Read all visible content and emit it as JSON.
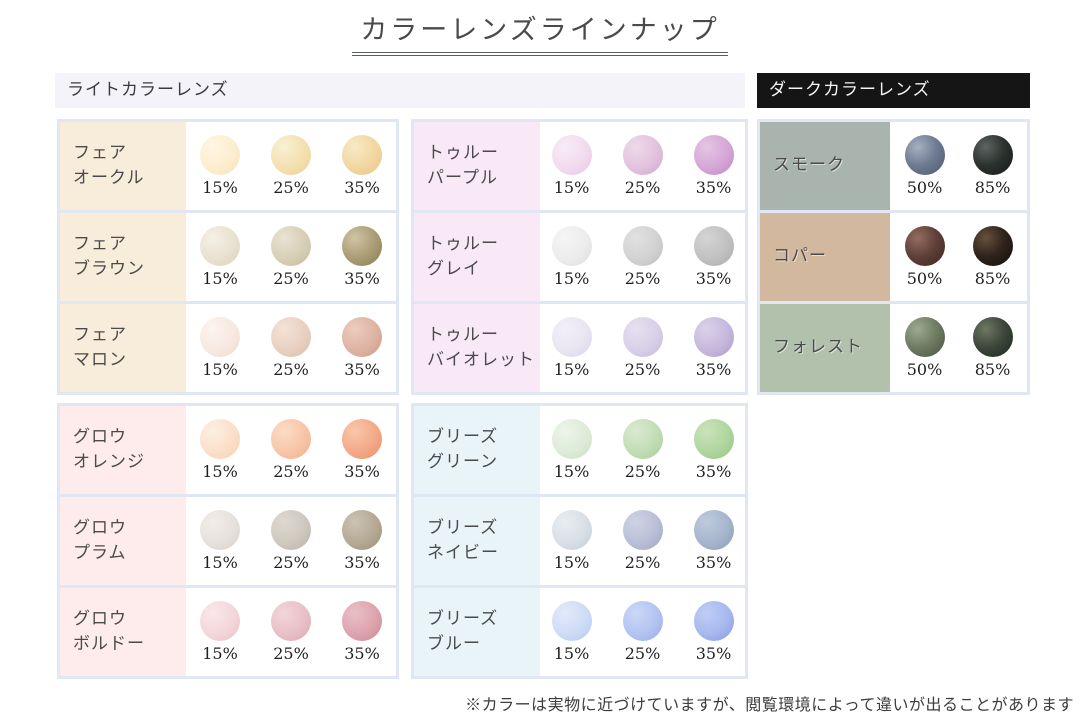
{
  "title": "カラーレンズラインナップ",
  "headers": {
    "light": "ライトカラーレンズ",
    "dark": "ダークカラーレンズ"
  },
  "footer_note": "※カラーは実物に近づけていますが、閲覧環境によって違いが出ることがあります",
  "accent_colors": {
    "box_border": "#e0e7f2",
    "light_header_bg": "#f5f3fa",
    "dark_header_bg": "#151515"
  },
  "columns": [
    {
      "section": "light",
      "groups": [
        {
          "rows": [
            {
              "label_lines": [
                "フェア",
                "オークル"
              ],
              "label_bg": "#f8ecda",
              "swatches": [
                {
                  "pct": "15%",
                  "hi": "#fff6e2",
                  "base": "#fcedcf",
                  "edge": "#f7e3ba"
                },
                {
                  "pct": "25%",
                  "hi": "#faf0d4",
                  "base": "#f4dfae",
                  "edge": "#edd094"
                },
                {
                  "pct": "35%",
                  "hi": "#f8eac6",
                  "base": "#f1d6a0",
                  "edge": "#e9c686"
                }
              ]
            },
            {
              "label_lines": [
                "フェア",
                "ブラウン"
              ],
              "label_bg": "#f8ecda",
              "swatches": [
                {
                  "pct": "15%",
                  "hi": "#f5f0e6",
                  "base": "#e9e1d0",
                  "edge": "#dcd1ba"
                },
                {
                  "pct": "25%",
                  "hi": "#e9e3d3",
                  "base": "#d7ceb5",
                  "edge": "#c6ba9b"
                },
                {
                  "pct": "35%",
                  "hi": "#cfc4a5",
                  "base": "#a89a72",
                  "edge": "#8a7b52"
                }
              ]
            },
            {
              "label_lines": [
                "フェア",
                "マロン"
              ],
              "label_bg": "#f8ecda",
              "swatches": [
                {
                  "pct": "15%",
                  "hi": "#fcf4ee",
                  "base": "#f7e8e0",
                  "edge": "#efd9cd"
                },
                {
                  "pct": "25%",
                  "hi": "#f3e3d7",
                  "base": "#e8d0c0",
                  "edge": "#dbbda8"
                },
                {
                  "pct": "35%",
                  "hi": "#ecccbd",
                  "base": "#ddb3a2",
                  "edge": "#cd9c86"
                }
              ]
            }
          ]
        },
        {
          "rows": [
            {
              "label_lines": [
                "グロウ",
                "オレンジ"
              ],
              "label_bg": "#fdeceb",
              "swatches": [
                {
                  "pct": "15%",
                  "hi": "#fdefe2",
                  "base": "#fbdfc9",
                  "edge": "#f7ceae"
                },
                {
                  "pct": "25%",
                  "hi": "#fbdcc6",
                  "base": "#f7c5a7",
                  "edge": "#f0af88"
                },
                {
                  "pct": "35%",
                  "hi": "#f9c7aa",
                  "base": "#f3a987",
                  "edge": "#ea8f63"
                }
              ]
            },
            {
              "label_lines": [
                "グロウ",
                "プラム"
              ],
              "label_bg": "#fdeceb",
              "swatches": [
                {
                  "pct": "15%",
                  "hi": "#f1ede9",
                  "base": "#e6e1dc",
                  "edge": "#d7d0c8"
                },
                {
                  "pct": "25%",
                  "hi": "#ded8d0",
                  "base": "#cfc8bf",
                  "edge": "#bbb1a3"
                },
                {
                  "pct": "35%",
                  "hi": "#cdc3b3",
                  "base": "#b5a995",
                  "edge": "#9c8d73"
                }
              ]
            },
            {
              "label_lines": [
                "グロウ",
                "ボルドー"
              ],
              "label_bg": "#fdeceb",
              "swatches": [
                {
                  "pct": "15%",
                  "hi": "#f9e8eb",
                  "base": "#f3d6da",
                  "edge": "#eac2c9"
                },
                {
                  "pct": "25%",
                  "hi": "#f2d5da",
                  "base": "#e8c0c7",
                  "edge": "#daa6b1"
                },
                {
                  "pct": "35%",
                  "hi": "#eabfc6",
                  "base": "#dda4ae",
                  "edge": "#cc8793"
                }
              ]
            }
          ]
        }
      ]
    },
    {
      "section": "light",
      "groups": [
        {
          "rows": [
            {
              "label_lines": [
                "トゥルー",
                "パープル"
              ],
              "label_bg": "#f9e8f5",
              "swatches": [
                {
                  "pct": "15%",
                  "hi": "#f8ebf5",
                  "base": "#f1dbee",
                  "edge": "#e6c5e1"
                },
                {
                  "pct": "25%",
                  "hi": "#eed9ea",
                  "base": "#e2c2de",
                  "edge": "#d0a5cd"
                },
                {
                  "pct": "35%",
                  "hi": "#e6c5e3",
                  "base": "#d5a6d6",
                  "edge": "#bf87c3"
                }
              ]
            },
            {
              "label_lines": [
                "トゥルー",
                "グレイ"
              ],
              "label_bg": "#f9e8f5",
              "swatches": [
                {
                  "pct": "15%",
                  "hi": "#f5f5f5",
                  "base": "#ececec",
                  "edge": "#dcdcdc"
                },
                {
                  "pct": "25%",
                  "hi": "#e1e1e1",
                  "base": "#d2d2d2",
                  "edge": "#bebebe"
                },
                {
                  "pct": "35%",
                  "hi": "#d4d4d4",
                  "base": "#c1c1c1",
                  "edge": "#a9a9a9"
                }
              ]
            },
            {
              "label_lines": [
                "トゥルー",
                "バイオレット"
              ],
              "label_bg": "#f9e8f5",
              "swatches": [
                {
                  "pct": "15%",
                  "hi": "#f2eff8",
                  "base": "#e9e5f2",
                  "edge": "#dad2ea"
                },
                {
                  "pct": "25%",
                  "hi": "#e6e0f1",
                  "base": "#d8d0e8",
                  "edge": "#c4b8dc"
                },
                {
                  "pct": "35%",
                  "hi": "#dbd2ea",
                  "base": "#c5b7dc",
                  "edge": "#ac9bcd"
                }
              ]
            }
          ]
        },
        {
          "rows": [
            {
              "label_lines": [
                "ブリーズ",
                "グリーン"
              ],
              "label_bg": "#e8f4f8",
              "swatches": [
                {
                  "pct": "15%",
                  "hi": "#edf5ea",
                  "base": "#ddebd8",
                  "edge": "#c9dfbf"
                },
                {
                  "pct": "25%",
                  "hi": "#d9eacf",
                  "base": "#c2ddb5",
                  "edge": "#a7cd94"
                },
                {
                  "pct": "35%",
                  "hi": "#cbe3bb",
                  "base": "#b0d59f",
                  "edge": "#94c47d"
                }
              ]
            },
            {
              "label_lines": [
                "ブリーズ",
                "ネイビー"
              ],
              "label_bg": "#e8f4f8",
              "swatches": [
                {
                  "pct": "15%",
                  "hi": "#e8edf1",
                  "base": "#d8dfe5",
                  "edge": "#c2cdd7"
                },
                {
                  "pct": "25%",
                  "hi": "#ced3e4",
                  "base": "#b9bfd7",
                  "edge": "#9ba3c3"
                },
                {
                  "pct": "35%",
                  "hi": "#bfcbdc",
                  "base": "#a5b5cd",
                  "edge": "#8899b8"
                }
              ]
            },
            {
              "label_lines": [
                "ブリーズ",
                "ブルー"
              ],
              "label_bg": "#e8f4f8",
              "swatches": [
                {
                  "pct": "15%",
                  "hi": "#e2eafb",
                  "base": "#cedbf6",
                  "edge": "#b4c8f0"
                },
                {
                  "pct": "25%",
                  "hi": "#ccd7f7",
                  "base": "#b4c4f1",
                  "edge": "#97abe9"
                },
                {
                  "pct": "35%",
                  "hi": "#c0cdf5",
                  "base": "#a6b8ee",
                  "edge": "#8599e4"
                }
              ]
            }
          ]
        }
      ]
    },
    {
      "section": "dark",
      "groups": [
        {
          "rows": [
            {
              "label_lines": [
                "スモーク"
              ],
              "label_bg": "#a9b4ae",
              "swatches": [
                {
                  "pct": "50%",
                  "hi": "#a5b0bf",
                  "base": "#6e7b92",
                  "edge": "#4e586b"
                },
                {
                  "pct": "85%",
                  "hi": "#5d6461",
                  "base": "#2c332f",
                  "edge": "#131816"
                }
              ]
            },
            {
              "label_lines": [
                "コパー"
              ],
              "label_bg": "#d2b89f",
              "swatches": [
                {
                  "pct": "50%",
                  "hi": "#946c60",
                  "base": "#5f4038",
                  "edge": "#3a261f"
                },
                {
                  "pct": "85%",
                  "hi": "#66503c",
                  "base": "#30231c",
                  "edge": "#130d09"
                }
              ]
            },
            {
              "label_lines": [
                "フォレスト"
              ],
              "label_bg": "#b1c1ac",
              "swatches": [
                {
                  "pct": "50%",
                  "hi": "#9daa90",
                  "base": "#6e7c63",
                  "edge": "#47533e"
                },
                {
                  "pct": "85%",
                  "hi": "#6d7762",
                  "base": "#3d483c",
                  "edge": "#1c241c"
                }
              ]
            }
          ]
        }
      ]
    }
  ]
}
